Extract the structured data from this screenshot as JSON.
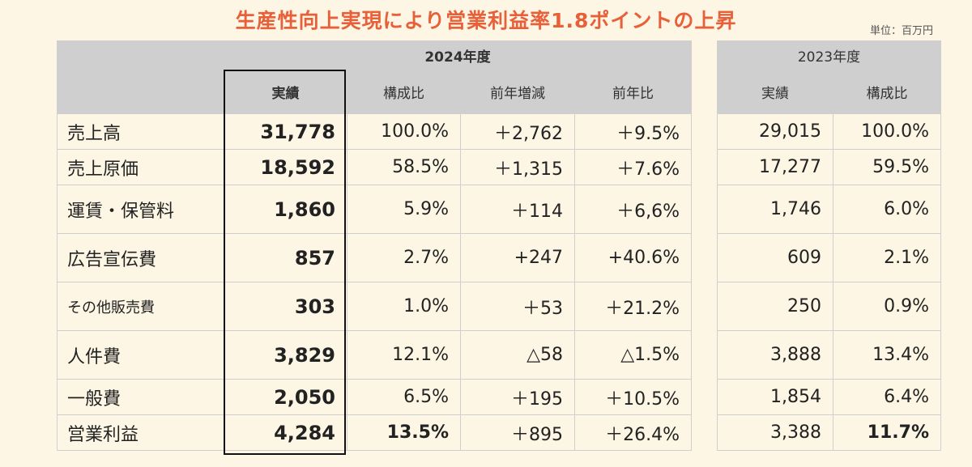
{
  "title": "生産性向上実現により営業利益率1.8ポイントの上昇",
  "unit": "単位：百万円",
  "fy2024": {
    "year_label": "2024年度",
    "columns": [
      "実績",
      "構成比",
      "前年増減",
      "前年比"
    ]
  },
  "fy2023": {
    "year_label": "2023年度",
    "columns": [
      "実績",
      "構成比"
    ]
  },
  "rows": [
    {
      "label": "売上高",
      "actual": "31,778",
      "ratio": "100.0%",
      "change": "＋2,762",
      "yoy": "＋9.5%",
      "prev_actual": "29,015",
      "prev_ratio": "100.0%"
    },
    {
      "label": "売上原価",
      "actual": "18,592",
      "ratio": "58.5%",
      "change": "＋1,315",
      "yoy": "＋7.6%",
      "prev_actual": "17,277",
      "prev_ratio": "59.5%"
    },
    {
      "label": "運賃・保管料",
      "actual": "1,860",
      "ratio": "5.9%",
      "change": "＋114",
      "yoy": "＋6,6%",
      "prev_actual": "1,746",
      "prev_ratio": "6.0%"
    },
    {
      "label": "広告宣伝費",
      "actual": "857",
      "ratio": "2.7%",
      "change": "+247",
      "yoy": "+40.6%",
      "prev_actual": "609",
      "prev_ratio": "2.1%"
    },
    {
      "label": "その他販売費",
      "actual": "303",
      "ratio": "1.0%",
      "change": "＋53",
      "yoy": "＋21.2%",
      "prev_actual": "250",
      "prev_ratio": "0.9%"
    },
    {
      "label": "人件費",
      "actual": "3,829",
      "ratio": "12.1%",
      "change": "△58",
      "yoy": "△1.5%",
      "prev_actual": "3,888",
      "prev_ratio": "13.4%"
    },
    {
      "label": "一般費",
      "actual": "2,050",
      "ratio": "6.5%",
      "change": "＋195",
      "yoy": "＋10.5%",
      "prev_actual": "1,854",
      "prev_ratio": "6.4%"
    },
    {
      "label": "営業利益",
      "actual": "4,284",
      "ratio": "13.5%",
      "change": "＋895",
      "yoy": "＋26.4%",
      "prev_actual": "3,388",
      "prev_ratio": "11.7%"
    }
  ]
}
